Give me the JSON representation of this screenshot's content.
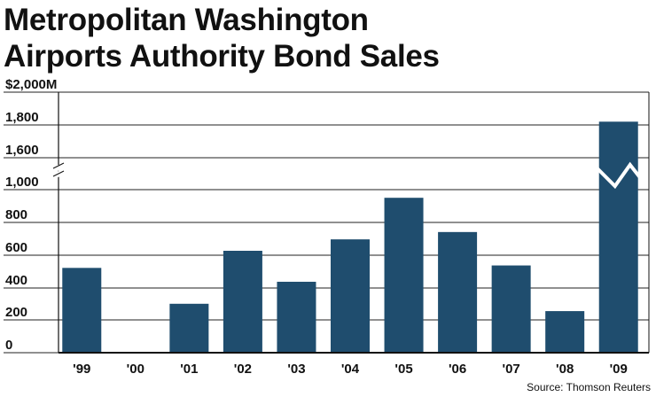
{
  "chart_data": {
    "type": "bar",
    "title_lines": [
      "Metropolitan Washington",
      "Airports Authority Bond Sales"
    ],
    "categories": [
      "'99",
      "'00",
      "'01",
      "'02",
      "'03",
      "'04",
      "'05",
      "'06",
      "'07",
      "'08",
      "'09"
    ],
    "values": [
      520,
      0,
      300,
      625,
      435,
      695,
      950,
      740,
      535,
      255,
      1820
    ],
    "y_ticks": [
      "$2,000M",
      "1,800",
      "1,600",
      "1,000",
      "800",
      "600",
      "400",
      "200",
      "0"
    ],
    "y_axis_break": {
      "from": 1000,
      "to": 1600
    },
    "xlabel": "",
    "ylabel": "",
    "grid": true,
    "bar_color": "#1f4d6e",
    "source": "Source: Thomson Reuters"
  }
}
